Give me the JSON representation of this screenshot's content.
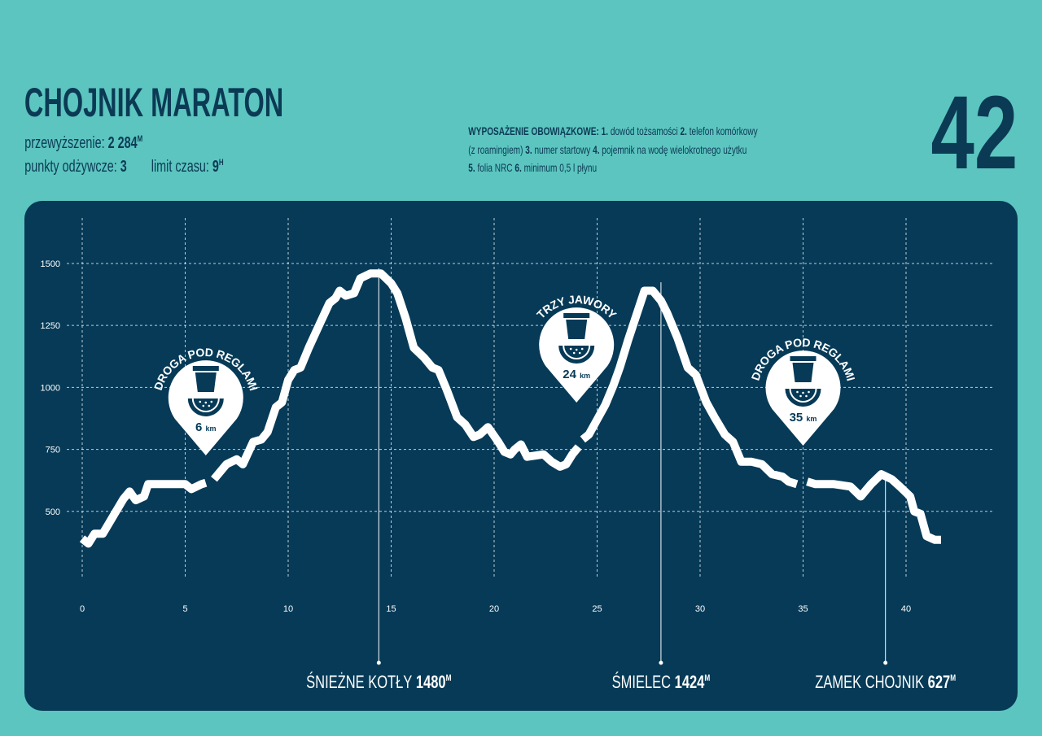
{
  "header": {
    "title": "CHOJNIK MARATON",
    "race_number": "42",
    "stats": [
      {
        "label": "przewyższenie:",
        "value": "2 284",
        "unit": "M"
      },
      {
        "label": "punkty odżywcze:",
        "value": "3"
      },
      {
        "label": "limit czasu:",
        "value": "9",
        "unit": "H"
      }
    ]
  },
  "equipment": {
    "heading": "WYPOSAŻENIE OBOWIĄZKOWE:",
    "items": [
      {
        "num": "1.",
        "text": [
          "dowód tożsamości"
        ]
      },
      {
        "num": "2.",
        "text": [
          "telefon komórkowy",
          "(z roamingiem)"
        ]
      },
      {
        "num": "3.",
        "text": [
          "numer startowy"
        ]
      },
      {
        "num": "4.",
        "text": [
          "pojemnik na wodę wielokrotnego użytku"
        ]
      },
      {
        "num": "5.",
        "text": [
          "folia NRC"
        ]
      },
      {
        "num": "6.",
        "text": [
          "minimum 0,5 l płynu"
        ]
      }
    ]
  },
  "chart_data": {
    "type": "line",
    "color": "#ffffff",
    "x": [
      0,
      0.3,
      0.6,
      1.0,
      1.5,
      2.0,
      2.3,
      2.6,
      3.0,
      3.2,
      4.0,
      4.5,
      5.0,
      5.3,
      5.8,
      6.0,
      6.2,
      6.4,
      7.0,
      7.5,
      7.8,
      8.3,
      8.7,
      9.0,
      9.4,
      9.7,
      10.0,
      10.3,
      10.6,
      11.0,
      11.5,
      12.0,
      12.3,
      12.5,
      12.8,
      13.2,
      13.5,
      14.0,
      14.5,
      15.0,
      15.3,
      15.7,
      16.1,
      16.6,
      17.0,
      17.3,
      17.7,
      18.2,
      18.6,
      19.0,
      19.3,
      19.7,
      20.2,
      20.5,
      20.8,
      21.0,
      21.3,
      21.6,
      22.0,
      22.4,
      22.8,
      23.2,
      23.5,
      23.8,
      24.1,
      24.2,
      24.3,
      24.6,
      25.0,
      25.4,
      25.8,
      26.1,
      26.5,
      26.9,
      27.3,
      27.7,
      28.1,
      28.4,
      28.9,
      29.4,
      29.8,
      30.3,
      30.7,
      31.2,
      31.6,
      32.0,
      32.5,
      33.0,
      33.5,
      34.0,
      34.3,
      34.7,
      35.0,
      35.2,
      35.6,
      36.5,
      37.3,
      37.8,
      38.3,
      38.8,
      39.3,
      39.7,
      40.2,
      40.4,
      40.7,
      41.0,
      41.4,
      41.7
    ],
    "values": [
      390,
      370,
      410,
      410,
      480,
      550,
      580,
      545,
      560,
      610,
      610,
      610,
      610,
      590,
      610,
      615,
      null,
      630,
      690,
      710,
      690,
      780,
      790,
      820,
      920,
      940,
      1030,
      1070,
      1080,
      1160,
      1250,
      1340,
      1360,
      1390,
      1370,
      1380,
      1440,
      1460,
      1460,
      1420,
      1380,
      1280,
      1160,
      1120,
      1080,
      1070,
      990,
      880,
      850,
      800,
      810,
      840,
      780,
      740,
      730,
      750,
      770,
      720,
      725,
      730,
      700,
      680,
      690,
      730,
      760,
      null,
      790,
      810,
      870,
      930,
      1010,
      1080,
      1190,
      1290,
      1390,
      1390,
      1350,
      1300,
      1200,
      1080,
      1050,
      940,
      880,
      810,
      780,
      700,
      700,
      690,
      650,
      640,
      620,
      610,
      null,
      620,
      610,
      610,
      600,
      560,
      610,
      650,
      630,
      600,
      560,
      500,
      490,
      400,
      385,
      385
    ],
    "xlim": [
      0,
      42.2
    ],
    "ylim": [
      250,
      1700
    ],
    "xticks": [
      0,
      5,
      10,
      15,
      20,
      25,
      30,
      35,
      40
    ],
    "yticks": [
      500,
      750,
      1000,
      1250,
      1500
    ],
    "grid": true,
    "annotations": [
      {
        "label": "ŚNIEŻNE KOTŁY",
        "x": 14.4,
        "value": 1480,
        "unit": "M"
      },
      {
        "label": "ŚMIELEC",
        "x": 28.1,
        "value": 1424,
        "unit": "M"
      },
      {
        "label": "ZAMEK CHOJNIK",
        "x": 39.0,
        "value": 627,
        "unit": "M"
      }
    ],
    "aid_stations": [
      {
        "label": "DROGA POD REGLAMI",
        "value": 6,
        "unit": "km"
      },
      {
        "label": "TRZY JAWORY",
        "value": 24,
        "unit": "km"
      },
      {
        "label": "DROGA POD REGLAMI",
        "value": 35,
        "unit": "km"
      }
    ]
  }
}
